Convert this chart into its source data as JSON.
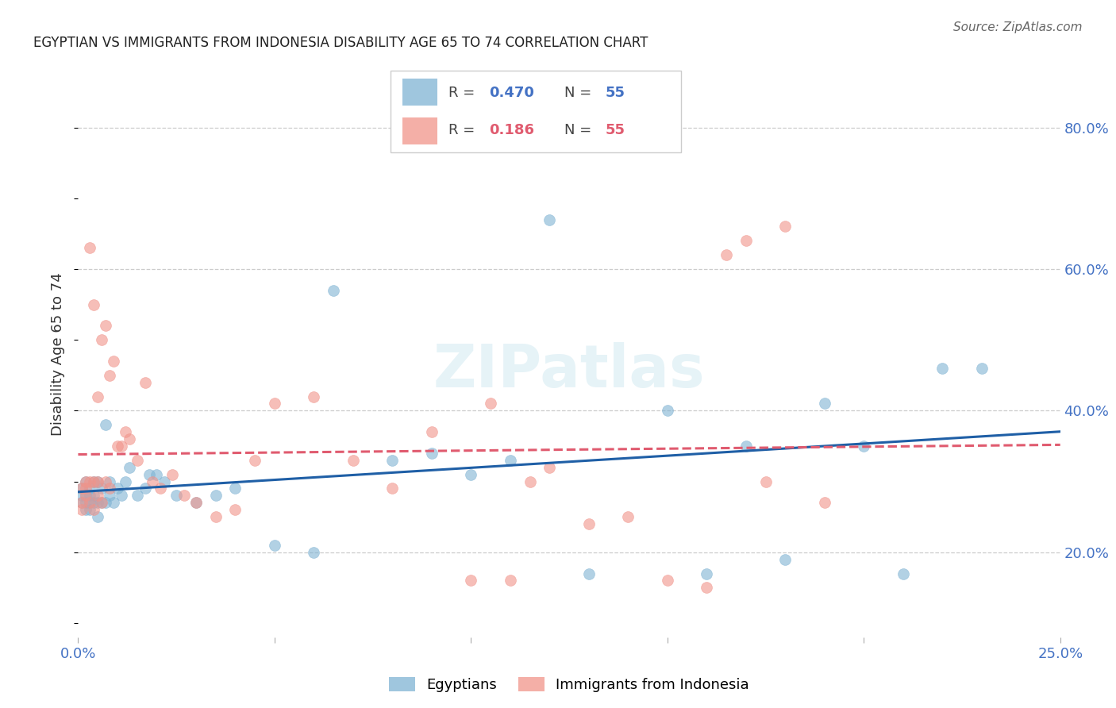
{
  "title": "EGYPTIAN VS IMMIGRANTS FROM INDONESIA DISABILITY AGE 65 TO 74 CORRELATION CHART",
  "source": "Source: ZipAtlas.com",
  "ylabel": "Disability Age 65 to 74",
  "ylabel_ticks": [
    "20.0%",
    "40.0%",
    "60.0%",
    "80.0%"
  ],
  "ylabel_tick_vals": [
    0.2,
    0.4,
    0.6,
    0.8
  ],
  "xlim": [
    0.0,
    0.25
  ],
  "ylim": [
    0.08,
    0.88
  ],
  "blue_color": "#7FB3D3",
  "pink_color": "#F1948A",
  "blue_line_color": "#1F5FA6",
  "pink_line_color": "#E05B6F",
  "watermark": "ZIPatlas",
  "egyptians_x": [
    0.001,
    0.001,
    0.001,
    0.002,
    0.002,
    0.002,
    0.002,
    0.003,
    0.003,
    0.003,
    0.003,
    0.004,
    0.004,
    0.004,
    0.005,
    0.005,
    0.005,
    0.006,
    0.006,
    0.007,
    0.007,
    0.008,
    0.008,
    0.009,
    0.01,
    0.011,
    0.012,
    0.013,
    0.015,
    0.017,
    0.018,
    0.02,
    0.022,
    0.025,
    0.03,
    0.035,
    0.04,
    0.05,
    0.06,
    0.065,
    0.08,
    0.09,
    0.1,
    0.11,
    0.12,
    0.13,
    0.15,
    0.16,
    0.17,
    0.18,
    0.19,
    0.2,
    0.21,
    0.22,
    0.23
  ],
  "egyptians_y": [
    0.27,
    0.28,
    0.29,
    0.26,
    0.27,
    0.28,
    0.3,
    0.26,
    0.27,
    0.28,
    0.29,
    0.27,
    0.28,
    0.3,
    0.25,
    0.27,
    0.3,
    0.27,
    0.29,
    0.27,
    0.38,
    0.28,
    0.3,
    0.27,
    0.29,
    0.28,
    0.3,
    0.32,
    0.28,
    0.29,
    0.31,
    0.31,
    0.3,
    0.28,
    0.27,
    0.28,
    0.29,
    0.21,
    0.2,
    0.57,
    0.33,
    0.34,
    0.31,
    0.33,
    0.67,
    0.17,
    0.4,
    0.17,
    0.35,
    0.19,
    0.41,
    0.35,
    0.17,
    0.46,
    0.46
  ],
  "indonesia_x": [
    0.001,
    0.001,
    0.001,
    0.002,
    0.002,
    0.002,
    0.003,
    0.003,
    0.003,
    0.004,
    0.004,
    0.004,
    0.005,
    0.005,
    0.005,
    0.006,
    0.006,
    0.007,
    0.007,
    0.008,
    0.008,
    0.009,
    0.01,
    0.011,
    0.012,
    0.013,
    0.015,
    0.017,
    0.019,
    0.021,
    0.024,
    0.027,
    0.03,
    0.035,
    0.04,
    0.045,
    0.05,
    0.06,
    0.07,
    0.08,
    0.09,
    0.1,
    0.105,
    0.11,
    0.115,
    0.12,
    0.13,
    0.14,
    0.15,
    0.16,
    0.165,
    0.17,
    0.175,
    0.18,
    0.19
  ],
  "indonesia_y": [
    0.27,
    0.26,
    0.29,
    0.3,
    0.28,
    0.29,
    0.27,
    0.3,
    0.63,
    0.26,
    0.55,
    0.3,
    0.28,
    0.42,
    0.3,
    0.27,
    0.5,
    0.52,
    0.3,
    0.45,
    0.29,
    0.47,
    0.35,
    0.35,
    0.37,
    0.36,
    0.33,
    0.44,
    0.3,
    0.29,
    0.31,
    0.28,
    0.27,
    0.25,
    0.26,
    0.33,
    0.41,
    0.42,
    0.33,
    0.29,
    0.37,
    0.16,
    0.41,
    0.16,
    0.3,
    0.32,
    0.24,
    0.25,
    0.16,
    0.15,
    0.62,
    0.64,
    0.3,
    0.66,
    0.27
  ]
}
